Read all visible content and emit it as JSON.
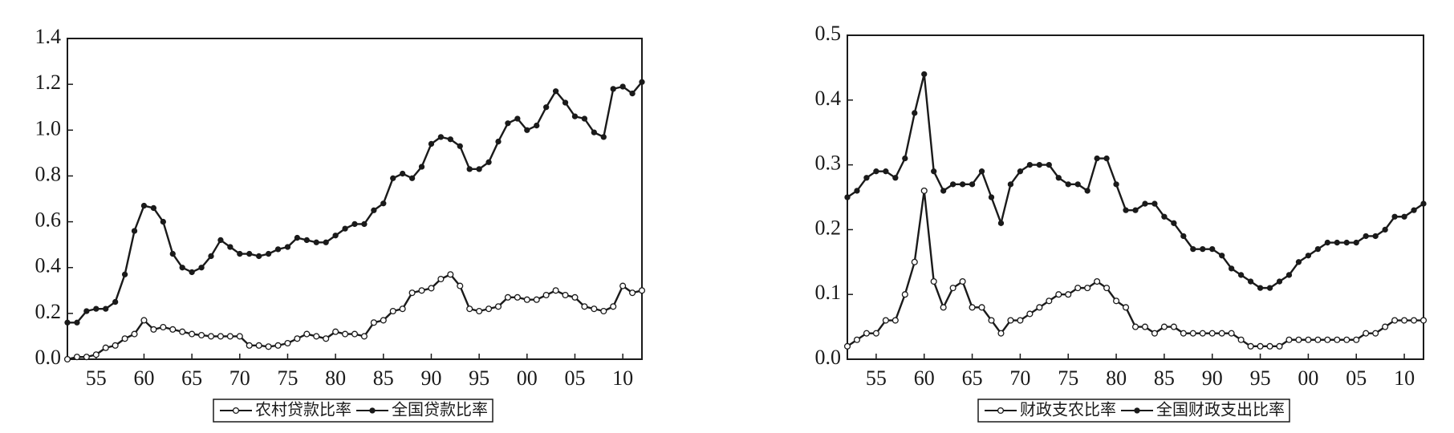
{
  "chart_data": [
    {
      "type": "line",
      "categories": [
        null,
        null,
        null,
        "55",
        null,
        null,
        null,
        null,
        "60",
        null,
        null,
        null,
        null,
        "65",
        null,
        null,
        null,
        null,
        "70",
        null,
        null,
        null,
        null,
        "75",
        null,
        null,
        null,
        null,
        "80",
        null,
        null,
        null,
        null,
        "85",
        null,
        null,
        null,
        null,
        "90",
        null,
        null,
        null,
        null,
        "95",
        null,
        null,
        null,
        null,
        "00",
        null,
        null,
        null,
        null,
        "05",
        null,
        null,
        null,
        null,
        "10",
        null,
        null
      ],
      "ylim": [
        0,
        1.4
      ],
      "yticks": [
        {
          "value": 0,
          "label": "0.0"
        },
        0.2,
        0.4,
        0.6,
        0.8,
        {
          "value": 1,
          "label": "1.0"
        },
        1.2,
        1.4
      ],
      "legend": "bottom",
      "series": [
        {
          "name": "农村贷款比率",
          "color": "#1a1a1a",
          "marker": "open",
          "values": [
            0.0,
            0.01,
            0.01,
            0.02,
            0.05,
            0.06,
            0.09,
            0.11,
            0.17,
            0.13,
            0.14,
            0.13,
            0.12,
            0.11,
            0.105,
            0.1,
            0.1,
            0.1,
            0.1,
            0.06,
            0.06,
            0.055,
            0.06,
            0.07,
            0.09,
            0.11,
            0.1,
            0.09,
            0.12,
            0.11,
            0.11,
            0.1,
            0.16,
            0.17,
            0.21,
            0.22,
            0.29,
            0.3,
            0.31,
            0.35,
            0.37,
            0.32,
            0.22,
            0.21,
            0.22,
            0.23,
            0.27,
            0.27,
            0.26,
            0.26,
            0.28,
            0.3,
            0.28,
            0.27,
            0.23,
            0.22,
            0.21,
            0.23,
            0.32,
            0.29,
            0.3
          ]
        },
        {
          "name": "全国贷款比率",
          "color": "#1a1a1a",
          "marker": "filled",
          "values": [
            0.16,
            0.16,
            0.21,
            0.22,
            0.22,
            0.25,
            0.37,
            0.56,
            0.67,
            0.66,
            0.6,
            0.46,
            0.4,
            0.38,
            0.4,
            0.45,
            0.52,
            0.49,
            0.46,
            0.46,
            0.45,
            0.46,
            0.48,
            0.49,
            0.53,
            0.52,
            0.51,
            0.51,
            0.54,
            0.57,
            0.59,
            0.59,
            0.65,
            0.68,
            0.79,
            0.81,
            0.79,
            0.84,
            0.94,
            0.97,
            0.96,
            0.93,
            0.83,
            0.83,
            0.86,
            0.95,
            1.03,
            1.05,
            1.0,
            1.02,
            1.1,
            1.17,
            1.12,
            1.06,
            1.05,
            0.99,
            0.97,
            1.18,
            1.19,
            1.16,
            1.21
          ]
        }
      ]
    },
    {
      "type": "line",
      "categories": [
        null,
        null,
        null,
        "55",
        null,
        null,
        null,
        null,
        "60",
        null,
        null,
        null,
        null,
        "65",
        null,
        null,
        null,
        null,
        "70",
        null,
        null,
        null,
        null,
        "75",
        null,
        null,
        null,
        null,
        "80",
        null,
        null,
        null,
        null,
        "85",
        null,
        null,
        null,
        null,
        "90",
        null,
        null,
        null,
        null,
        "95",
        null,
        null,
        null,
        null,
        "00",
        null,
        null,
        null,
        null,
        "05",
        null,
        null,
        null,
        null,
        "10",
        null,
        null
      ],
      "ylim": [
        0,
        0.5
      ],
      "yticks": [
        {
          "value": 0,
          "label": "0.0"
        },
        0.1,
        0.2,
        0.3,
        0.4,
        0.5
      ],
      "legend": "bottom",
      "series": [
        {
          "name": "财政支农比率",
          "color": "#1a1a1a",
          "marker": "open",
          "values": [
            0.02,
            0.03,
            0.04,
            0.04,
            0.06,
            0.06,
            0.1,
            0.15,
            0.26,
            0.12,
            0.08,
            0.11,
            0.12,
            0.08,
            0.08,
            0.06,
            0.04,
            0.06,
            0.06,
            0.07,
            0.08,
            0.09,
            0.1,
            0.1,
            0.11,
            0.11,
            0.12,
            0.11,
            0.09,
            0.08,
            0.05,
            0.05,
            0.04,
            0.05,
            0.05,
            0.04,
            0.04,
            0.04,
            0.04,
            0.04,
            0.04,
            0.03,
            0.02,
            0.02,
            0.02,
            0.02,
            0.03,
            0.03,
            0.03,
            0.03,
            0.03,
            0.03,
            0.03,
            0.03,
            0.04,
            0.04,
            0.05,
            0.06,
            0.06,
            0.06,
            0.06
          ]
        },
        {
          "name": "全国财政支出比率",
          "color": "#1a1a1a",
          "marker": "filled",
          "values": [
            0.25,
            0.26,
            0.28,
            0.29,
            0.29,
            0.28,
            0.31,
            0.38,
            0.44,
            0.29,
            0.26,
            0.27,
            0.27,
            0.27,
            0.29,
            0.25,
            0.21,
            0.27,
            0.29,
            0.3,
            0.3,
            0.3,
            0.28,
            0.27,
            0.27,
            0.26,
            0.31,
            0.31,
            0.27,
            0.23,
            0.23,
            0.24,
            0.24,
            0.22,
            0.21,
            0.19,
            0.17,
            0.17,
            0.17,
            0.16,
            0.14,
            0.13,
            0.12,
            0.11,
            0.11,
            0.12,
            0.13,
            0.15,
            0.16,
            0.17,
            0.18,
            0.18,
            0.18,
            0.18,
            0.19,
            0.19,
            0.2,
            0.22,
            0.22,
            0.23,
            0.24
          ]
        }
      ]
    }
  ]
}
